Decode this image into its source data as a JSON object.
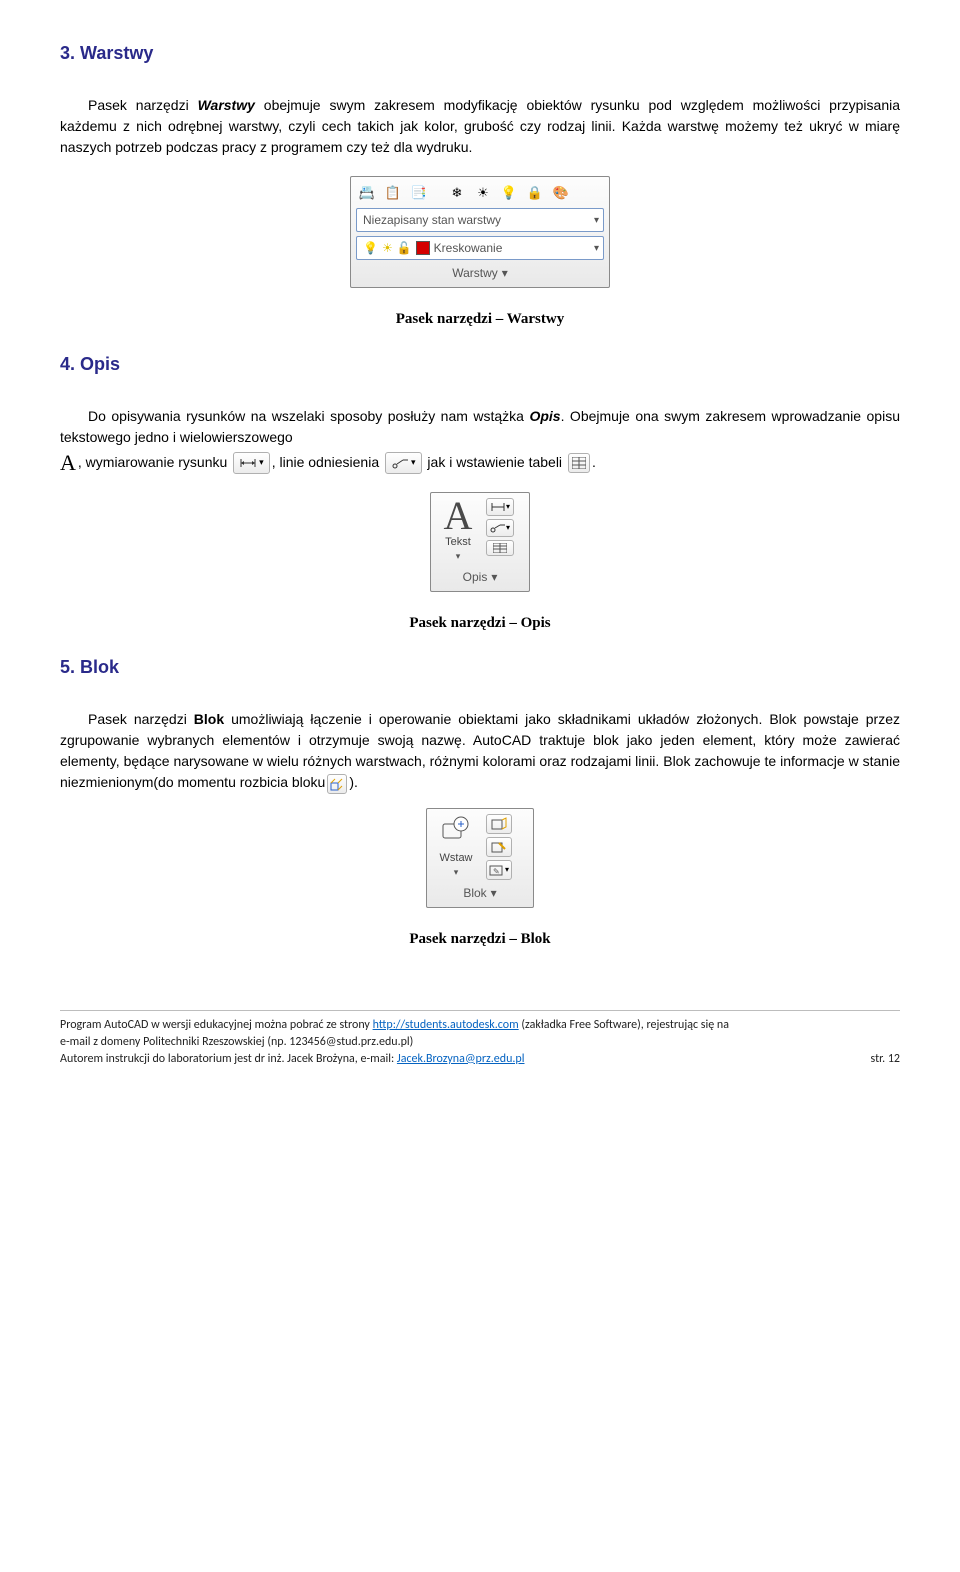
{
  "sections": {
    "s3": {
      "heading": "3. Warstwy",
      "para": "Pasek narzędzi <span class=\"bold-ital\">Warstwy</span> obejmuje swym zakresem modyfikację obiektów rysunku pod względem możliwości przypisania każdemu z nich odrębnej warstwy, czyli cech takich jak kolor, grubość czy rodzaj linii. Każda warstwę możemy też ukryć w miarę naszych potrzeb podczas pracy z programem czy też dla wydruku.",
      "caption": "Pasek narzędzi – Warstwy"
    },
    "s4": {
      "heading": "4. Opis",
      "para1": "Do opisywania rysunków na wszelaki sposoby posłuży nam wstążka <span class=\"bold-ital\">Opis</span>. Obejmuje ona swym zakresem wprowadzanie opisu tekstowego jedno i wielowierszowego",
      "para2_a": ", wymiarowanie rysunku",
      "para2_b": ", linie odniesienia",
      "para2_c": " jak i wstawienie tabeli",
      "para2_d": ".",
      "caption": "Pasek narzędzi – Opis"
    },
    "s5": {
      "heading": "5. Blok",
      "para_a": "Pasek narzędzi <span class=\"bold\">Blok</span> umożliwiają łączenie i operowanie obiektami jako składnikami układów złożonych. Blok powstaje przez zgrupowanie wybranych elementów i otrzymuje swoją nazwę. AutoCAD traktuje blok jako jeden element, który może zawierać elementy, będące narysowane w wielu różnych warstwach, różnymi kolorami oraz rodzajami linii. Blok zachowuje te informacje w stanie niezmienionym(do momentu rozbicia bloku",
      "para_b": ").",
      "caption": "Pasek narzędzi – Blok"
    }
  },
  "panels": {
    "warstwy": {
      "dropdown1": "Niezapisany stan warstwy",
      "dropdown2": "Kreskowanie",
      "label": "Warstwy"
    },
    "opis": {
      "text_label": "Tekst",
      "label": "Opis"
    },
    "blok": {
      "text_label": "Wstaw",
      "label": "Blok"
    }
  },
  "footer": {
    "line1_a": "Program AutoCAD w wersji edukacyjnej można pobrać ze strony ",
    "line1_link": "http://students.autodesk.com",
    "line1_b": " (zakładka Free Software), rejestrując się na",
    "line2": "e-mail z domeny Politechniki Rzeszowskiej (np. 123456@stud.prz.edu.pl)",
    "line3_a": "Autorem instrukcji do laboratorium jest dr inż. Jacek Brożyna, e-mail: ",
    "line3_link": "Jacek.Brozyna@prz.edu.pl",
    "page": "str. 12"
  }
}
